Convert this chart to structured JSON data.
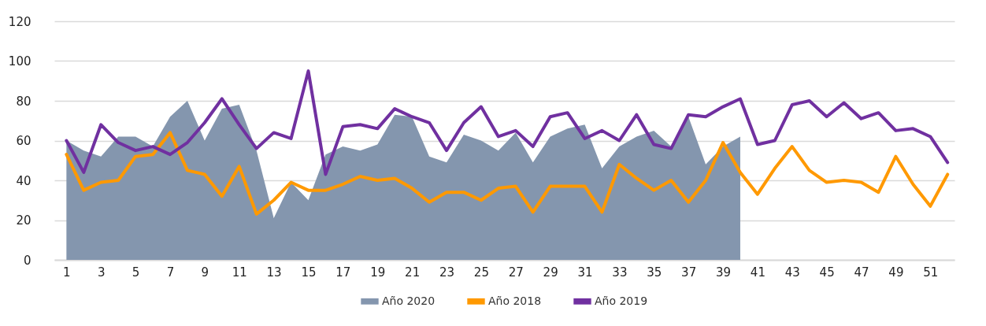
{
  "chart_data": {
    "type": "line",
    "x": [
      1,
      2,
      3,
      4,
      5,
      6,
      7,
      8,
      9,
      10,
      11,
      12,
      13,
      14,
      15,
      16,
      17,
      18,
      19,
      20,
      21,
      22,
      23,
      24,
      25,
      26,
      27,
      28,
      29,
      30,
      31,
      32,
      33,
      34,
      35,
      36,
      37,
      38,
      39,
      40,
      41,
      42,
      43,
      44,
      45,
      46,
      47,
      48,
      49,
      50,
      51,
      52
    ],
    "series": [
      {
        "name": "Año 2020",
        "type": "area",
        "color": "#8496ae",
        "values": [
          60,
          55,
          52,
          62,
          62,
          57,
          72,
          80,
          60,
          76,
          78,
          55,
          21,
          39,
          30,
          53,
          57,
          55,
          58,
          73,
          72,
          52,
          49,
          63,
          60,
          55,
          64,
          49,
          62,
          66,
          68,
          46,
          57,
          62,
          65,
          57,
          72,
          48,
          57,
          62,
          null,
          null,
          null,
          null,
          null,
          null,
          null,
          null,
          null,
          null,
          null,
          null
        ]
      },
      {
        "name": "Año 2018",
        "color": "#ff9900",
        "values": [
          53,
          35,
          39,
          40,
          52,
          53,
          64,
          45,
          43,
          32,
          47,
          23,
          30,
          39,
          35,
          35,
          38,
          42,
          40,
          41,
          36,
          29,
          34,
          34,
          30,
          36,
          37,
          24,
          37,
          37,
          37,
          24,
          48,
          41,
          35,
          40,
          29,
          40,
          59,
          44,
          33,
          46,
          57,
          45,
          39,
          40,
          39,
          34,
          52,
          38,
          27,
          43
        ]
      },
      {
        "name": "Año 2019",
        "color": "#7030a0",
        "values": [
          60,
          44,
          68,
          59,
          55,
          57,
          53,
          59,
          69,
          81,
          68,
          56,
          64,
          61,
          95,
          43,
          67,
          68,
          66,
          76,
          72,
          69,
          55,
          69,
          77,
          62,
          65,
          57,
          72,
          74,
          61,
          65,
          60,
          73,
          58,
          56,
          73,
          72,
          77,
          81,
          58,
          60,
          78,
          80,
          72,
          79,
          71,
          74,
          65,
          66,
          62,
          49
        ]
      }
    ],
    "xlim": [
      0.3,
      52.4
    ],
    "xticks": [
      1,
      3,
      5,
      7,
      9,
      11,
      13,
      15,
      17,
      19,
      21,
      23,
      25,
      27,
      29,
      31,
      33,
      35,
      37,
      39,
      41,
      43,
      45,
      47,
      49,
      51
    ],
    "ylim": [
      0,
      120
    ],
    "yticks": [
      0,
      20,
      40,
      60,
      80,
      100,
      120
    ],
    "grid": "y",
    "legend": "bottom",
    "line_style": "solid"
  }
}
